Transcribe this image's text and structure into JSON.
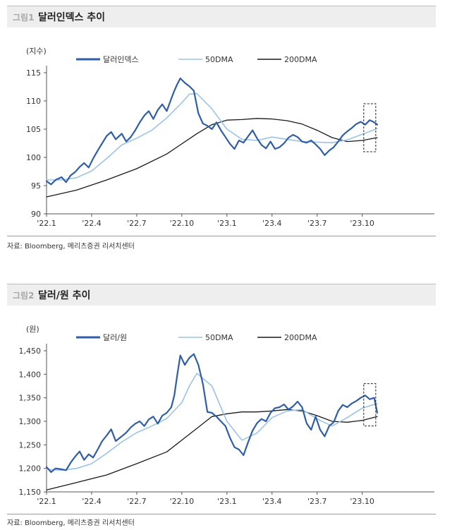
{
  "figures": [
    {
      "number": "그림1",
      "title": "달러인덱스 추이",
      "source": "자료: Bloomberg, 메리츠증권 리서치센터",
      "chart_data": {
        "type": "line",
        "ylabel": "(지수)",
        "ylim": [
          90,
          115
        ],
        "yticks": [
          "90",
          "95",
          "100",
          "105",
          "110",
          "115"
        ],
        "ytick_values": [
          90,
          95,
          100,
          105,
          110,
          115
        ],
        "x_tick_labels": [
          "'22.1",
          "'22.4",
          "'22.7",
          "'22.10",
          "'23.1",
          "'23.4",
          "'23.7",
          "'23.10"
        ],
        "x_tick_values": [
          0,
          3,
          6,
          9,
          12,
          15,
          18,
          21
        ],
        "xlim": [
          0,
          25.8
        ],
        "grid": false,
        "legend": "top",
        "series": [
          {
            "name": "달러인덱스",
            "color": "#2f5ea8",
            "width": 2.2,
            "x": [
              0,
              0.3,
              0.6,
              1.0,
              1.3,
              1.6,
              1.9,
              2.2,
              2.5,
              2.8,
              3.1,
              3.4,
              3.7,
              4.0,
              4.3,
              4.6,
              5.0,
              5.3,
              5.6,
              5.9,
              6.2,
              6.5,
              6.8,
              7.1,
              7.4,
              7.7,
              8.0,
              8.3,
              8.5,
              8.7,
              8.9,
              9.2,
              9.5,
              9.8,
              10.1,
              10.4,
              10.7,
              11.0,
              11.3,
              11.6,
              11.9,
              12.2,
              12.5,
              12.8,
              13.1,
              13.4,
              13.7,
              14.0,
              14.3,
              14.6,
              14.9,
              15.2,
              15.5,
              15.8,
              16.1,
              16.4,
              16.7,
              17.0,
              17.3,
              17.6,
              17.9,
              18.2,
              18.5,
              18.8,
              19.1,
              19.4,
              19.7,
              20.0,
              20.3,
              20.6,
              20.9,
              21.2,
              21.5,
              21.8,
              22.0
            ],
            "y": [
              95.8,
              95.2,
              96.0,
              96.5,
              95.6,
              96.8,
              97.4,
              98.3,
              99.0,
              98.2,
              99.8,
              101.2,
              102.5,
              103.8,
              104.5,
              103.2,
              104.2,
              102.8,
              103.6,
              104.8,
              106.2,
              107.4,
              108.2,
              106.8,
              108.4,
              109.4,
              108.2,
              110.4,
              111.8,
              113.0,
              114.0,
              113.2,
              112.6,
              111.8,
              107.8,
              106.0,
              105.6,
              105.0,
              106.2,
              104.8,
              103.6,
              102.4,
              101.5,
              103.0,
              102.6,
              103.7,
              104.8,
              103.4,
              102.2,
              101.6,
              102.8,
              101.5,
              101.8,
              102.5,
              103.5,
              104.0,
              103.6,
              102.8,
              102.6,
              103.0,
              102.3,
              101.5,
              100.4,
              101.2,
              101.8,
              102.8,
              103.9,
              104.6,
              105.2,
              105.9,
              106.3,
              105.8,
              106.6,
              106.2,
              105.8
            ]
          },
          {
            "name": "50DMA",
            "color": "#9cc3e6",
            "width": 1.6,
            "x": [
              0,
              1,
              2,
              3,
              4,
              5,
              6,
              7,
              8,
              9,
              9.5,
              10,
              11,
              12,
              13,
              14,
              15,
              16,
              17,
              18,
              19,
              20,
              21,
              22
            ],
            "y": [
              96.0,
              96.0,
              96.4,
              97.6,
              99.8,
              102.2,
              103.4,
              104.8,
              107.0,
              109.7,
              111.2,
              111.3,
              108.6,
              105.0,
              103.2,
              103.0,
              103.6,
              103.2,
              102.8,
              102.7,
              102.6,
              103.1,
              104.1,
              105.1
            ]
          },
          {
            "name": "200DMA",
            "color": "#1a1a1a",
            "width": 1.3,
            "x": [
              0,
              2,
              4,
              6,
              8,
              10,
              11,
              12,
              13,
              14,
              15,
              16,
              17,
              18,
              19,
              20,
              21,
              22
            ],
            "y": [
              93.0,
              94.2,
              96.0,
              98.0,
              100.6,
              104.2,
              105.8,
              106.6,
              106.7,
              106.9,
              106.8,
              106.5,
              105.9,
              104.8,
              103.5,
              102.8,
              103.0,
              103.5
            ]
          }
        ],
        "annotation": {
          "type": "dashed-box",
          "x": [
            21.1,
            21.9
          ],
          "y": [
            101.0,
            109.5
          ]
        }
      }
    },
    {
      "number": "그림2",
      "title": "달러/원 추이",
      "source": "자료: Bloomberg, 메리츠증권 리서치센터",
      "chart_data": {
        "type": "line",
        "ylabel": "(원)",
        "ylim": [
          1150,
          1450
        ],
        "yticks": [
          "1,150",
          "1,200",
          "1,250",
          "1,300",
          "1,350",
          "1,400",
          "1,450"
        ],
        "ytick_values": [
          1150,
          1200,
          1250,
          1300,
          1350,
          1400,
          1450
        ],
        "x_tick_labels": [
          "'22.1",
          "'22.4",
          "'22.7",
          "'22.10",
          "'23.1",
          "'23.4",
          "'23.7",
          "'23.10"
        ],
        "x_tick_values": [
          0,
          3,
          6,
          9,
          12,
          15,
          18,
          21
        ],
        "xlim": [
          0,
          25.8
        ],
        "grid": false,
        "legend": "top",
        "series": [
          {
            "name": "달러/원",
            "color": "#2f5ea8",
            "width": 2.2,
            "x": [
              0,
              0.3,
              0.6,
              1.0,
              1.3,
              1.6,
              1.9,
              2.2,
              2.5,
              2.8,
              3.1,
              3.4,
              3.7,
              4.0,
              4.3,
              4.6,
              5.0,
              5.3,
              5.6,
              5.9,
              6.2,
              6.5,
              6.8,
              7.1,
              7.4,
              7.7,
              8.0,
              8.3,
              8.5,
              8.7,
              8.9,
              9.2,
              9.5,
              9.8,
              10.1,
              10.4,
              10.7,
              11.0,
              11.3,
              11.6,
              11.9,
              12.2,
              12.5,
              12.8,
              13.1,
              13.4,
              13.7,
              14.0,
              14.3,
              14.6,
              14.9,
              15.2,
              15.5,
              15.8,
              16.1,
              16.4,
              16.7,
              17.0,
              17.3,
              17.6,
              17.9,
              18.2,
              18.5,
              18.8,
              19.1,
              19.4,
              19.7,
              20.0,
              20.3,
              20.6,
              20.9,
              21.2,
              21.5,
              21.8,
              22.0
            ],
            "y": [
              1203,
              1192,
              1200,
              1198,
              1196,
              1212,
              1225,
              1236,
              1218,
              1230,
              1223,
              1240,
              1258,
              1270,
              1283,
              1258,
              1268,
              1276,
              1287,
              1295,
              1300,
              1290,
              1304,
              1310,
              1295,
              1312,
              1318,
              1330,
              1355,
              1400,
              1440,
              1420,
              1435,
              1443,
              1420,
              1380,
              1320,
              1318,
              1310,
              1300,
              1290,
              1265,
              1245,
              1240,
              1228,
              1255,
              1280,
              1296,
              1305,
              1300,
              1318,
              1328,
              1330,
              1336,
              1325,
              1332,
              1342,
              1330,
              1296,
              1282,
              1310,
              1282,
              1268,
              1290,
              1298,
              1322,
              1335,
              1330,
              1338,
              1343,
              1350,
              1355,
              1347,
              1350,
              1318
            ]
          },
          {
            "name": "50DMA",
            "color": "#9cc3e6",
            "width": 1.6,
            "x": [
              0,
              1,
              2,
              3,
              4,
              5,
              6,
              7,
              8,
              9,
              9.5,
              10,
              11,
              12,
              13,
              14,
              15,
              16,
              17,
              18,
              19,
              20,
              21,
              22
            ],
            "y": [
              1198,
              1196,
              1200,
              1210,
              1232,
              1256,
              1276,
              1290,
              1306,
              1340,
              1375,
              1402,
              1375,
              1300,
              1260,
              1275,
              1308,
              1322,
              1325,
              1305,
              1290,
              1308,
              1328,
              1338
            ]
          },
          {
            "name": "200DMA",
            "color": "#1a1a1a",
            "width": 1.3,
            "x": [
              0,
              2,
              4,
              6,
              8,
              10,
              11,
              12,
              13,
              14,
              15,
              16,
              17,
              18,
              19,
              20,
              21,
              22
            ],
            "y": [
              1154,
              1170,
              1186,
              1210,
              1235,
              1285,
              1310,
              1316,
              1320,
              1320,
              1322,
              1325,
              1322,
              1312,
              1300,
              1298,
              1302,
              1310
            ]
          }
        ],
        "annotation": {
          "type": "dashed-box",
          "x": [
            21.1,
            21.9
          ],
          "y": [
            1290,
            1380
          ]
        }
      }
    }
  ]
}
